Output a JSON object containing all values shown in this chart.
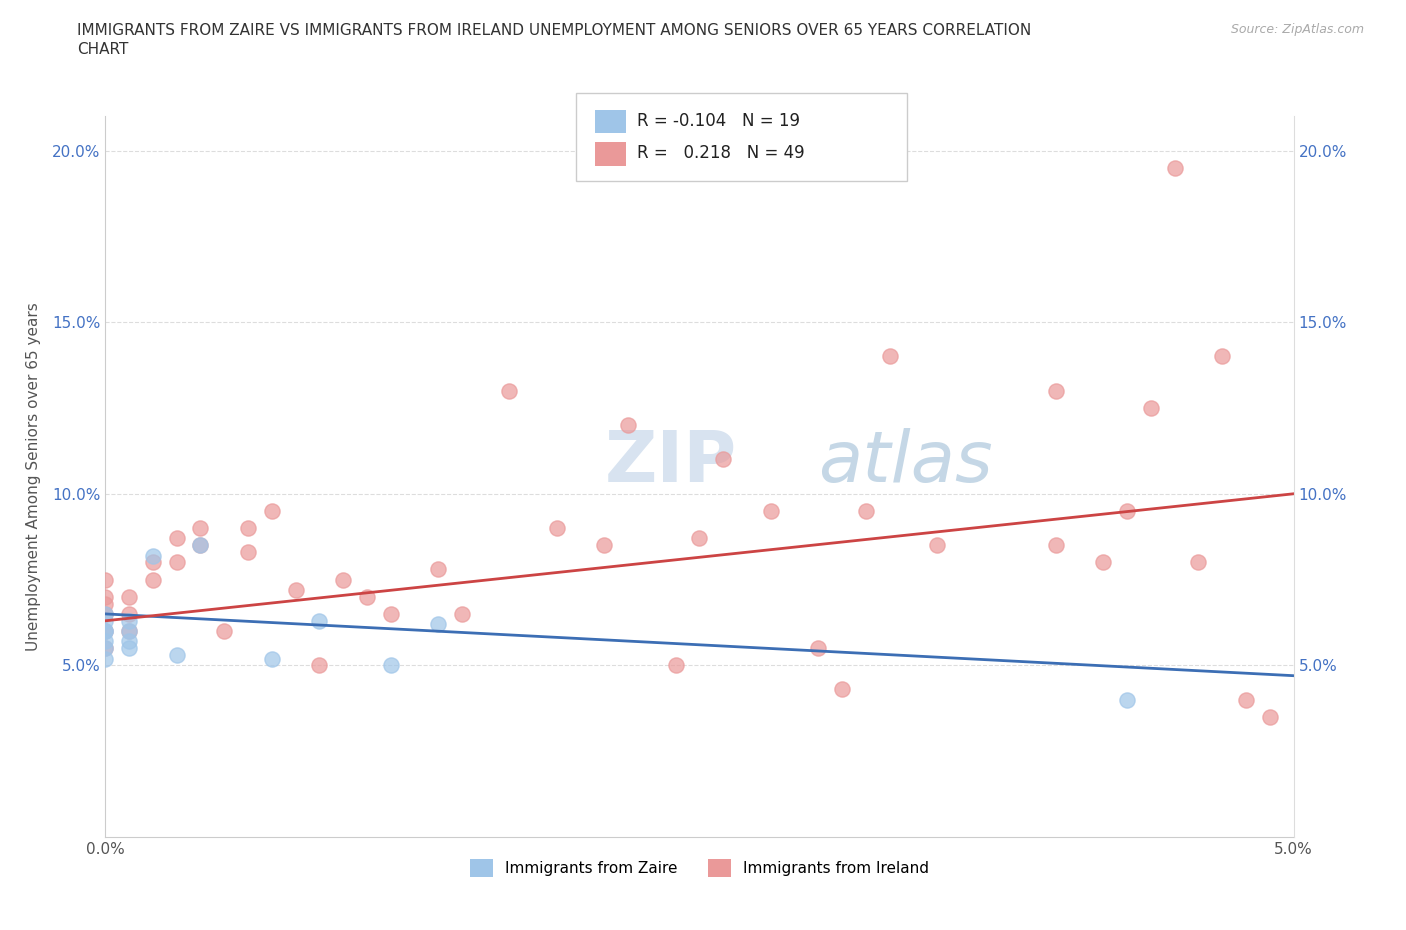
{
  "title_line1": "IMMIGRANTS FROM ZAIRE VS IMMIGRANTS FROM IRELAND UNEMPLOYMENT AMONG SENIORS OVER 65 YEARS CORRELATION",
  "title_line2": "CHART",
  "source": "Source: ZipAtlas.com",
  "ylabel": "Unemployment Among Seniors over 65 years",
  "xlim": [
    0.0,
    0.05
  ],
  "ylim": [
    0.0,
    0.21
  ],
  "xtick_positions": [
    0.0,
    0.01,
    0.02,
    0.03,
    0.04,
    0.05
  ],
  "xtick_labels": [
    "0.0%",
    "",
    "",
    "",
    "",
    "5.0%"
  ],
  "ytick_positions": [
    0.0,
    0.05,
    0.1,
    0.15,
    0.2
  ],
  "ytick_labels": [
    "",
    "5.0%",
    "10.0%",
    "15.0%",
    "20.0%"
  ],
  "legend_zaire_R": "-0.104",
  "legend_zaire_N": "19",
  "legend_ireland_R": "0.218",
  "legend_ireland_N": "49",
  "zaire_color": "#9fc5e8",
  "ireland_color": "#ea9999",
  "zaire_line_color": "#3c6eb4",
  "ireland_line_color": "#cc4444",
  "watermark_color": "#c8d8e8",
  "zaire_line_x0": 0.0,
  "zaire_line_y0": 0.065,
  "zaire_line_x1": 0.05,
  "zaire_line_y1": 0.047,
  "ireland_line_x0": 0.0,
  "ireland_line_y0": 0.063,
  "ireland_line_x1": 0.05,
  "ireland_line_y1": 0.1,
  "zaire_scatter_x": [
    0.0,
    0.0,
    0.0,
    0.0,
    0.0,
    0.0,
    0.0,
    0.001,
    0.001,
    0.001,
    0.001,
    0.002,
    0.003,
    0.004,
    0.007,
    0.009,
    0.012,
    0.014,
    0.043
  ],
  "zaire_scatter_y": [
    0.06,
    0.063,
    0.065,
    0.06,
    0.057,
    0.055,
    0.052,
    0.063,
    0.06,
    0.057,
    0.055,
    0.082,
    0.053,
    0.085,
    0.052,
    0.063,
    0.05,
    0.062,
    0.04
  ],
  "ireland_scatter_x": [
    0.0,
    0.0,
    0.0,
    0.0,
    0.0,
    0.0,
    0.001,
    0.001,
    0.001,
    0.002,
    0.002,
    0.003,
    0.003,
    0.004,
    0.004,
    0.005,
    0.006,
    0.006,
    0.007,
    0.008,
    0.009,
    0.01,
    0.011,
    0.012,
    0.014,
    0.015,
    0.017,
    0.019,
    0.021,
    0.022,
    0.024,
    0.025,
    0.026,
    0.028,
    0.03,
    0.031,
    0.032,
    0.033,
    0.035,
    0.04,
    0.04,
    0.042,
    0.043,
    0.044,
    0.045,
    0.046,
    0.047,
    0.048,
    0.049
  ],
  "ireland_scatter_y": [
    0.06,
    0.065,
    0.07,
    0.075,
    0.068,
    0.055,
    0.065,
    0.07,
    0.06,
    0.08,
    0.075,
    0.087,
    0.08,
    0.09,
    0.085,
    0.06,
    0.09,
    0.083,
    0.095,
    0.072,
    0.05,
    0.075,
    0.07,
    0.065,
    0.078,
    0.065,
    0.13,
    0.09,
    0.085,
    0.12,
    0.05,
    0.087,
    0.11,
    0.095,
    0.055,
    0.043,
    0.095,
    0.14,
    0.085,
    0.085,
    0.13,
    0.08,
    0.095,
    0.125,
    0.195,
    0.08,
    0.14,
    0.04,
    0.035
  ]
}
